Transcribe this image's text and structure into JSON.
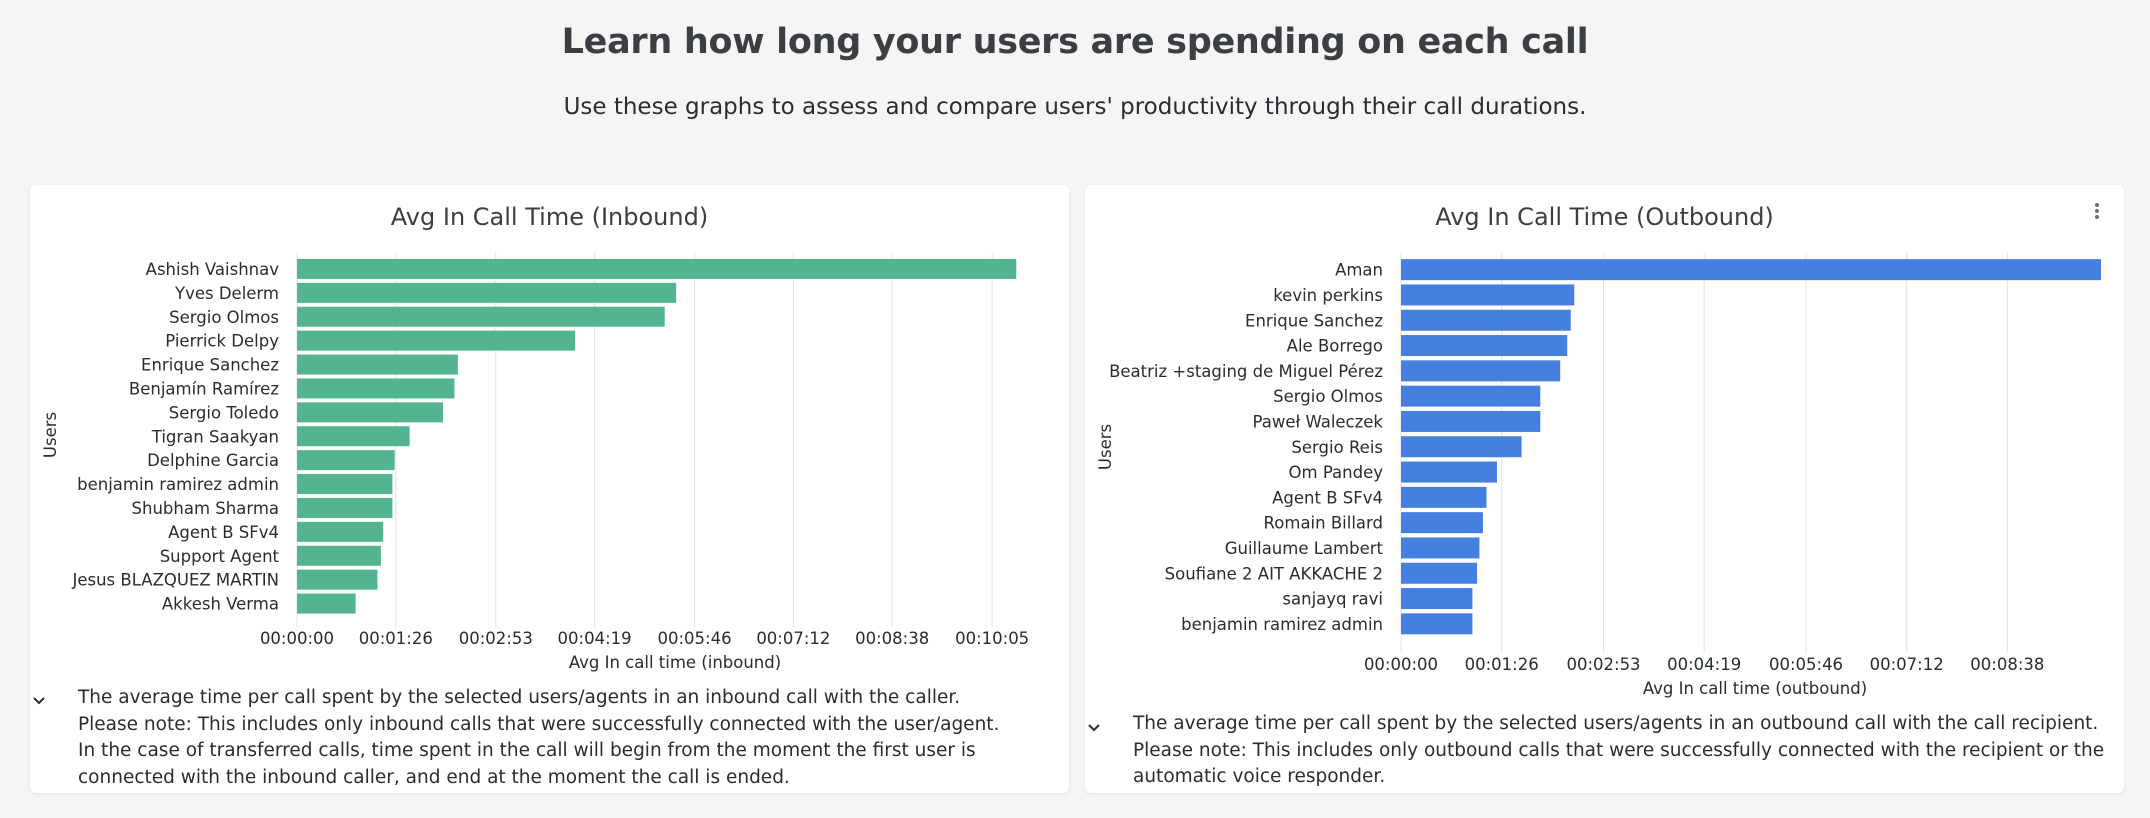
{
  "header": {
    "title": "Learn how long your users are spending on each call",
    "subtitle": "Use these graphs to assess and compare users' productivity through their call durations."
  },
  "chart_data": [
    {
      "type": "bar",
      "orientation": "horizontal",
      "title": "Avg In Call Time (Inbound)",
      "xlabel": "Avg In call time (inbound)",
      "ylabel": "Users",
      "color": "#52b58f",
      "unit": "seconds",
      "xlim": [
        0,
        651
      ],
      "grid": true,
      "xticks": [
        0,
        86,
        173,
        259,
        346,
        432,
        518,
        605
      ],
      "xtick_labels": [
        "00:00:00",
        "00:01:26",
        "00:02:53",
        "00:04:19",
        "00:05:46",
        "00:07:12",
        "00:08:38",
        "00:10:05"
      ],
      "categories": [
        "Ashish Vaishnav",
        "Yves Delerm",
        "Sergio Olmos",
        "Pierrick Delpy",
        "Enrique Sanchez",
        "Benjamín Ramírez",
        "Sergio Toledo",
        "Tigran Saakyan",
        "Delphine Garcia",
        "benjamin ramirez admin",
        "Shubham Sharma",
        "Agent B SFv4",
        "Support Agent",
        "Jesus BLAZQUEZ MARTIN",
        "Akkesh Verma"
      ],
      "values": [
        626,
        330,
        320,
        242,
        140,
        137,
        127,
        98,
        85,
        83,
        83,
        75,
        73,
        70,
        51
      ]
    },
    {
      "type": "bar",
      "orientation": "horizontal",
      "title": "Avg In Call Time (Outbound)",
      "xlabel": "Avg In call time (outbound)",
      "ylabel": "Users",
      "color": "#4580e0",
      "unit": "seconds",
      "xlim": [
        0,
        598
      ],
      "grid": true,
      "xticks": [
        0,
        86,
        173,
        259,
        346,
        432,
        518
      ],
      "xtick_labels": [
        "00:00:00",
        "00:01:26",
        "00:02:53",
        "00:04:19",
        "00:05:46",
        "00:07:12",
        "00:08:38"
      ],
      "categories": [
        "Aman",
        "kevin perkins",
        "Enrique Sanchez",
        "Ale Borrego",
        "Beatriz +staging de Miguel Pérez",
        "Sergio Olmos",
        "Paweł Waleczek",
        "Sergio Reis",
        "Om Pandey",
        "Agent B SFv4",
        "Romain Billard",
        "Guillaume Lambert",
        "Soufiane 2 AIT AKKACHE 2",
        "sanjayq ravi",
        "benjamin ramirez admin"
      ],
      "values": [
        598,
        148,
        145,
        142,
        136,
        119,
        119,
        103,
        82,
        73,
        70,
        67,
        65,
        61,
        61
      ]
    }
  ],
  "notes": {
    "inbound": [
      "The average time per call spent by the selected users/agents in an inbound call with the caller.",
      "Please note: This includes only inbound calls that were successfully connected with the user/agent.",
      "In the case of transferred calls, time spent in the call will begin from the moment the first user is connected with the inbound caller, and end at the moment the call is ended."
    ],
    "outbound": [
      "The average time per call spent by the selected users/agents in an outbound call with the call recipient.",
      "Please note: This includes only outbound calls that were successfully connected with the recipient or the automatic voice responder."
    ]
  },
  "icons": {
    "expand": "chevron-down-icon",
    "menu": "more-vertical-icon"
  }
}
